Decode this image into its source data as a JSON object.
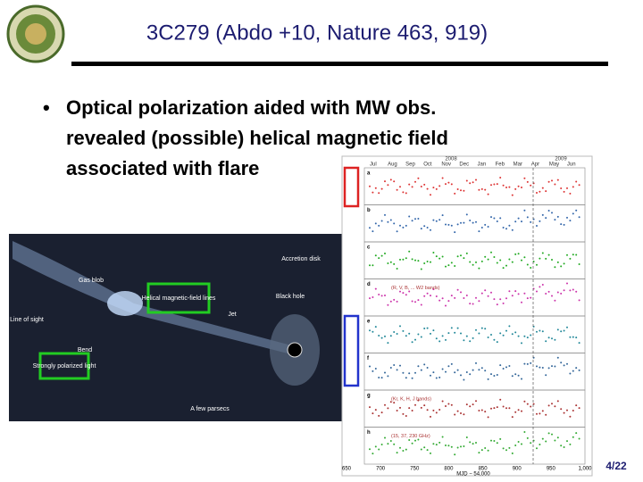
{
  "header": {
    "title": "3C279 (Abdo +10, Nature 463, 919)"
  },
  "bullet": {
    "lines": [
      "Optical polarization aided with MW obs.",
      "revealed (possible) helical magnetic field",
      "associated with flare"
    ]
  },
  "illustration": {
    "labels": [
      "Gas blob",
      "Accretion disk",
      "Helical magnetic-field lines",
      "Black hole",
      "Jet",
      "Line of sight",
      "Bend",
      "Strongly polarized light",
      "A few parsecs"
    ]
  },
  "figure": {
    "years": [
      "2008",
      "2009"
    ],
    "months": [
      "Jul",
      "Aug",
      "Sep",
      "Oct",
      "Nov",
      "Dec",
      "Jan",
      "Feb",
      "Mar",
      "Apr",
      "May",
      "Jun"
    ],
    "panels": [
      "a",
      "b",
      "c",
      "d",
      "e",
      "f",
      "g",
      "h"
    ],
    "notes": [
      "(R, V, B, ... W2 bands)",
      "(Kr, K, H, J bands)",
      "(15, 37, 230 GHz)"
    ],
    "x_axis_label": "MJD − 54,000",
    "x_ticks": [
      "650",
      "700",
      "750",
      "800",
      "850",
      "900",
      "950",
      "1,000"
    ]
  },
  "footer": {
    "page": "4/22"
  }
}
